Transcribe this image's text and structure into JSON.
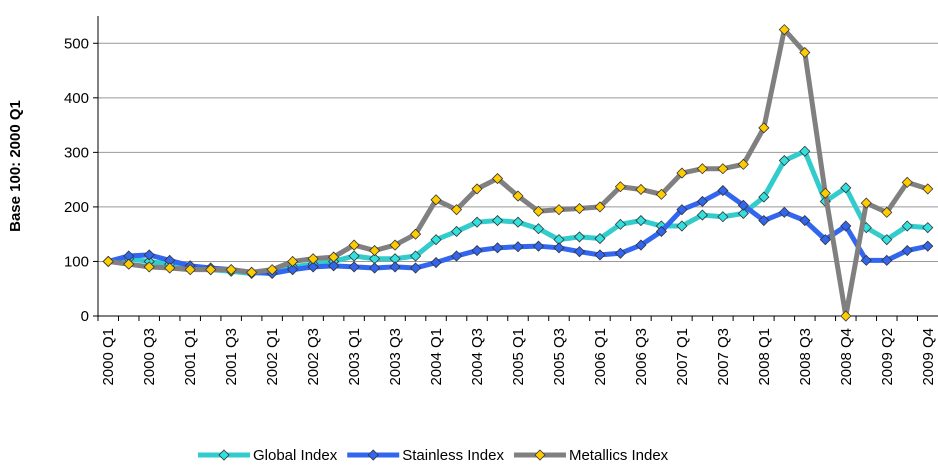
{
  "chart_data": {
    "type": "line",
    "y_label": "Base 100: 2000 Q1",
    "categories": [
      "2000 Q1",
      null,
      "2000 Q3",
      null,
      "2001 Q1",
      null,
      "2001 Q3",
      null,
      "2002 Q1",
      null,
      "2002 Q3",
      null,
      "2003 Q1",
      null,
      "2003 Q3",
      null,
      "2004 Q1",
      null,
      "2004 Q3",
      null,
      "2005 Q1",
      null,
      "2005 Q3",
      null,
      "2006 Q1",
      null,
      "2006 Q3",
      null,
      "2007 Q1",
      null,
      "2007 Q3",
      null,
      "2008 Q1",
      null,
      "2008 Q3",
      null,
      "2008 Q4",
      null,
      "2009 Q2",
      null,
      "2009 Q4"
    ],
    "series": [
      {
        "name": "Global Index",
        "color": "#33cccc",
        "marker_color": "#33e0e0",
        "values": [
          100,
          105,
          100,
          95,
          88,
          85,
          82,
          78,
          82,
          90,
          95,
          100,
          110,
          105,
          105,
          110,
          140,
          155,
          172,
          175,
          172,
          160,
          140,
          145,
          142,
          168,
          175,
          165,
          165,
          185,
          182,
          188,
          218,
          285,
          302,
          210,
          235,
          162,
          140,
          165,
          162
        ]
      },
      {
        "name": "Stainless Index",
        "color": "#3366ee",
        "marker_color": "#3366ee",
        "values": [
          100,
          110,
          112,
          102,
          92,
          88,
          85,
          80,
          78,
          85,
          90,
          92,
          90,
          88,
          90,
          88,
          98,
          110,
          120,
          125,
          127,
          128,
          125,
          118,
          112,
          115,
          130,
          155,
          195,
          210,
          230,
          203,
          175,
          190,
          175,
          140,
          165,
          102,
          102,
          120,
          128
        ]
      },
      {
        "name": "Metallics Index",
        "color": "#808080",
        "marker_color": "#ffcc00",
        "values": [
          100,
          95,
          90,
          88,
          85,
          85,
          85,
          80,
          85,
          100,
          105,
          108,
          130,
          120,
          130,
          150,
          213,
          195,
          233,
          252,
          220,
          192,
          195,
          197,
          200,
          237,
          232,
          223,
          262,
          270,
          270,
          278,
          345,
          525,
          483,
          225,
          0,
          207,
          190,
          245,
          233
        ]
      }
    ],
    "ylim": [
      0,
      550
    ],
    "yticks": [
      0,
      100,
      200,
      300,
      400,
      500
    ],
    "grid": true,
    "legend": "bottom"
  }
}
